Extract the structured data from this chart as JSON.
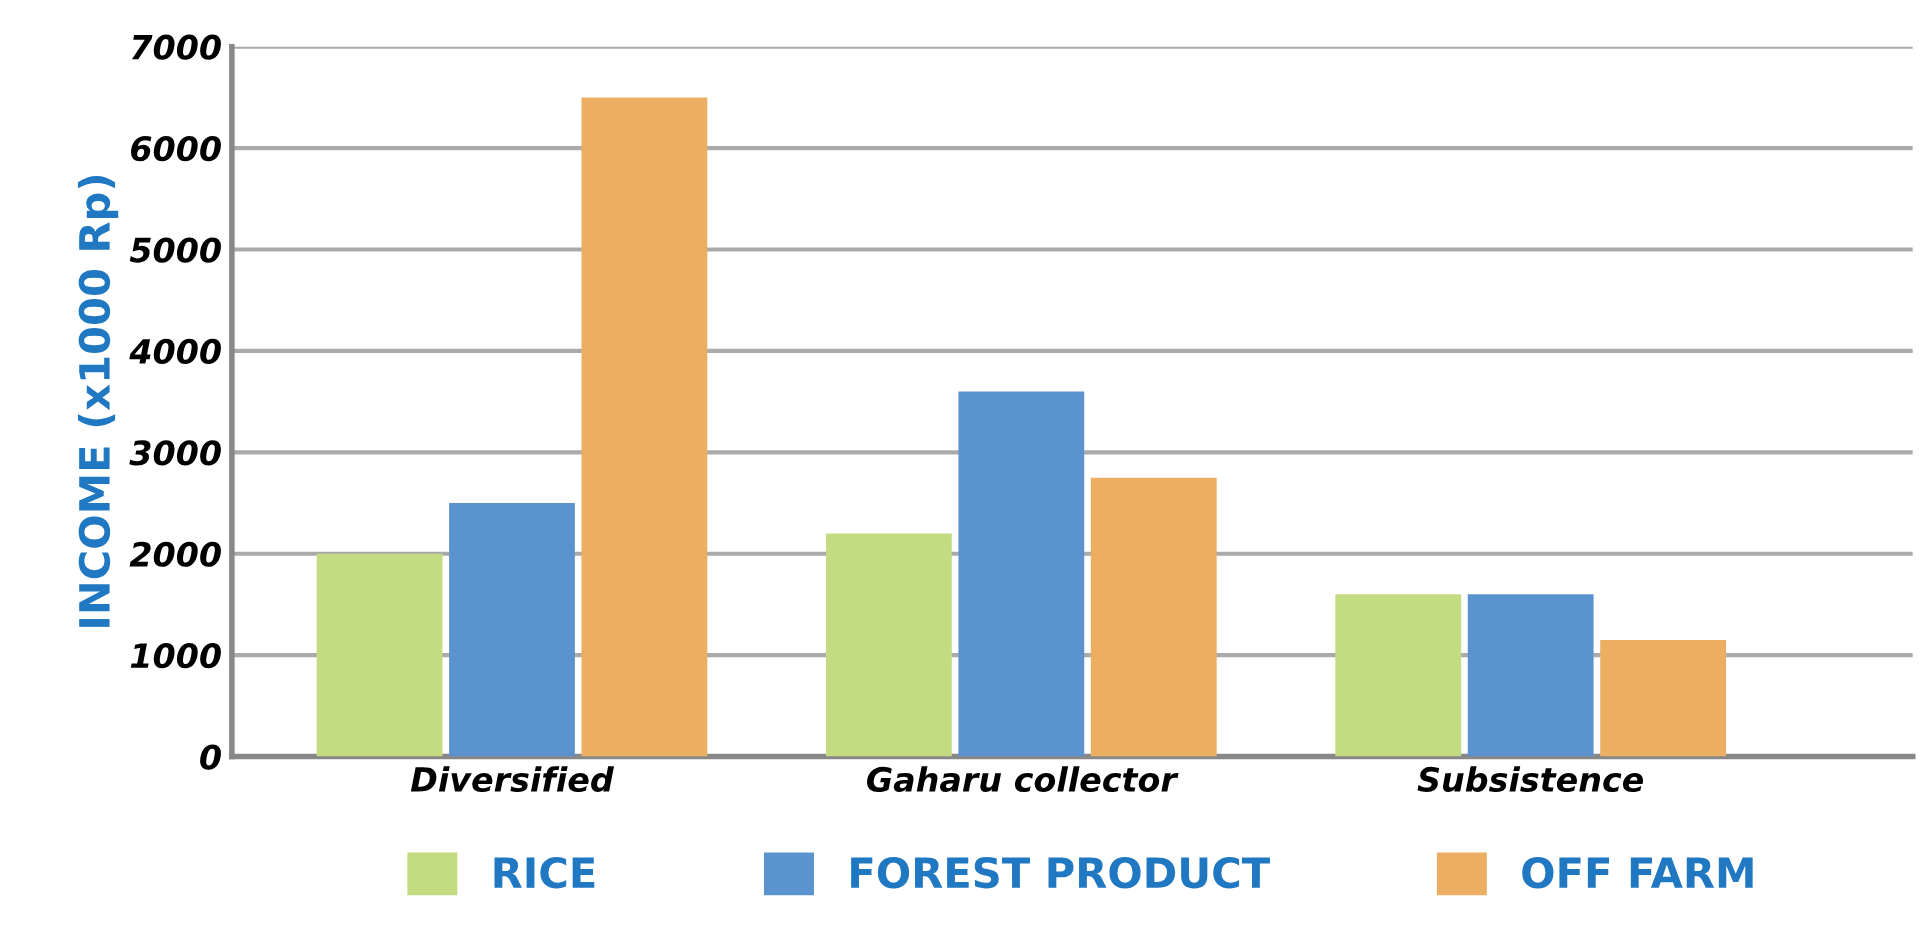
{
  "chart_data": {
    "type": "bar",
    "ylabel": "INCOME (x1000 Rp)",
    "categories": [
      "Diversified",
      "Gaharu collector",
      "Subsistence"
    ],
    "series": [
      {
        "name": "RICE",
        "color": "#c3dc82",
        "values": [
          2000,
          2200,
          1600
        ]
      },
      {
        "name": "FOREST PRODUCT",
        "color": "#5b93cf",
        "values": [
          2500,
          3600,
          1600
        ]
      },
      {
        "name": "OFF FARM",
        "color": "#ecae62",
        "values": [
          6500,
          2750,
          1150
        ]
      }
    ],
    "ylim": [
      0,
      7000
    ],
    "yticks": [
      0,
      1000,
      2000,
      3000,
      4000,
      5000,
      6000,
      7000
    ],
    "grid": "y",
    "legend": "bottom"
  }
}
